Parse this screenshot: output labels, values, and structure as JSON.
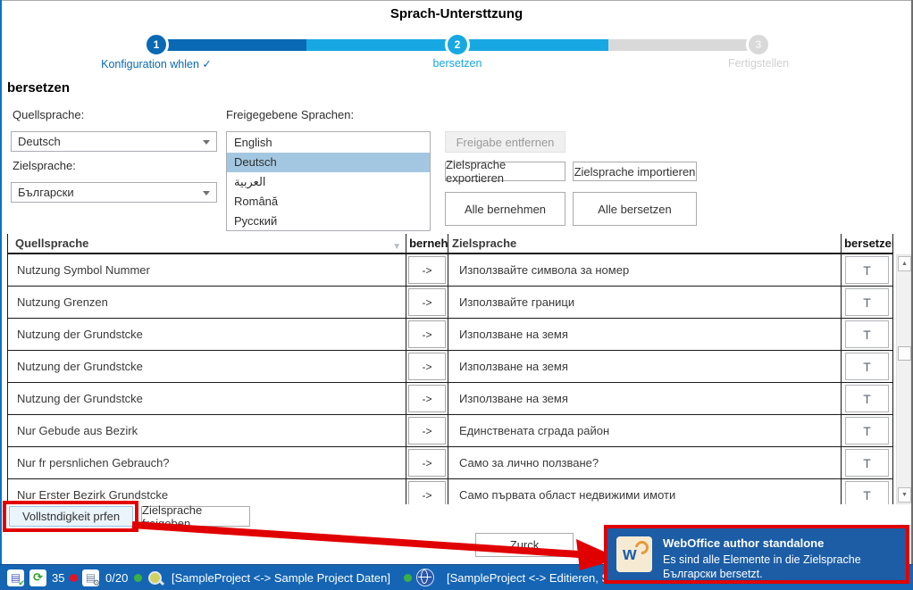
{
  "window": {
    "title": "Sprach-Untersttzung"
  },
  "stepper": {
    "steps": [
      {
        "number": "1",
        "label": "Konfiguration whlen ✓",
        "state": "done"
      },
      {
        "number": "2",
        "label": "bersetzen",
        "state": "active"
      },
      {
        "number": "3",
        "label": "Fertigstellen",
        "state": "pending"
      }
    ]
  },
  "section": {
    "heading": "bersetzen"
  },
  "form": {
    "source_label": "Quellsprache:",
    "source_value": "Deutsch",
    "target_label": "Zielsprache:",
    "target_value": "Български",
    "released_label": "Freigegebene Sprachen:",
    "released_languages": [
      "English",
      "Deutsch",
      "العربية",
      "Română",
      "Русский"
    ],
    "selected_language": "Deutsch",
    "buttons": {
      "remove_release": "Freigabe entfernen",
      "export_target": "Zielsprache exportieren",
      "import_target": "Zielsprache importieren",
      "apply_all": "Alle bernehmen",
      "translate_all": "Alle bersetzen"
    }
  },
  "table": {
    "headers": {
      "source": "Quellsprache",
      "apply": "bernehmen",
      "target": "Zielsprache",
      "translate": "bersetzen"
    },
    "sort_icon": "▼",
    "arrow_label": "->",
    "translate_label": "T",
    "rows": [
      {
        "source": "Nutzung Symbol Nummer",
        "target": "Използвайте символа за номер"
      },
      {
        "source": "Nutzung Grenzen",
        "target": "Използвайте граници"
      },
      {
        "source": "Nutzung der Grundstcke",
        "target": "Използване на земя"
      },
      {
        "source": "Nutzung der Grundstcke",
        "target": "Използване на земя"
      },
      {
        "source": "Nutzung der Grundstcke",
        "target": "Използване на земя"
      },
      {
        "source": "Nur Gebude aus Bezirk",
        "target": "Единствената сграда район"
      },
      {
        "source": "Nur fr persnlichen Gebrauch?",
        "target": "Само за лично ползване?"
      },
      {
        "source": "Nur Erster Bezirk Grundstcke",
        "target": "Само първата област недвижими имоти"
      }
    ]
  },
  "scrollbar": {
    "up": "▲",
    "down": "▼"
  },
  "footer": {
    "check_button": "Vollstndigkeit prfen",
    "release_button": "Zielsprache freigeben",
    "back_button": "Zurck"
  },
  "notification": {
    "title": "WebOffice author standalone",
    "message": "Es sind alle Elemente in die Zielsprache Български bersetzt.",
    "logo_w": "w"
  },
  "statusbar": {
    "count1": "35",
    "count2": "0/20",
    "project1": "[SampleProject <-> Sample Project Daten]",
    "project2": "[SampleProject <-> Editieren, Sar"
  },
  "colors": {
    "step_done": "#0a69b4",
    "step_active": "#17a8e3",
    "step_pending": "#d9d9d9",
    "annotation_red": "#e10000",
    "statusbar_blue": "#1565b4",
    "notification_blue": "#1c5da5",
    "list_selection": "#a3c7e0",
    "status_red_dot": "#e81123",
    "status_green_dot": "#3bb143"
  }
}
